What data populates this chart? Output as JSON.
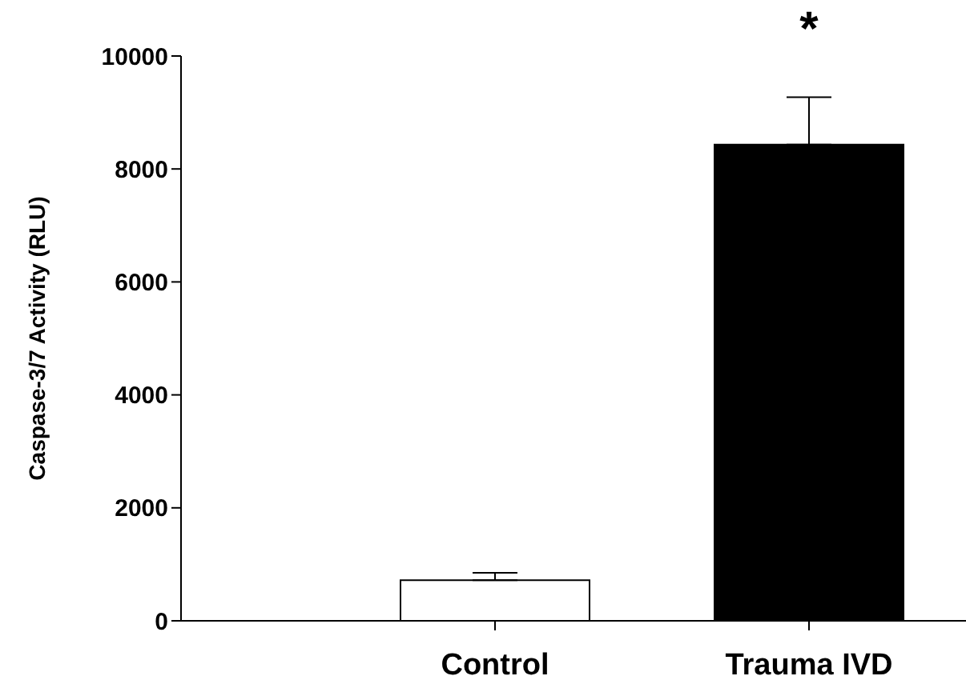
{
  "chart_data": {
    "type": "bar",
    "ylabel": "Caspase-3/7 Activity (RLU)",
    "categories": [
      null,
      "Control",
      "Trauma IVD"
    ],
    "values": [
      null,
      720,
      8430
    ],
    "colors": [
      "#ffffff",
      "#ffffff",
      "#000000"
    ],
    "errors": [
      null,
      [
        720,
        850
      ],
      [
        8430,
        9270
      ]
    ],
    "ylim": [
      0,
      10000
    ],
    "yticks": [
      0,
      2000,
      4000,
      6000,
      8000,
      10000
    ],
    "grid": false,
    "legend": false,
    "annotations": [
      "*"
    ]
  }
}
